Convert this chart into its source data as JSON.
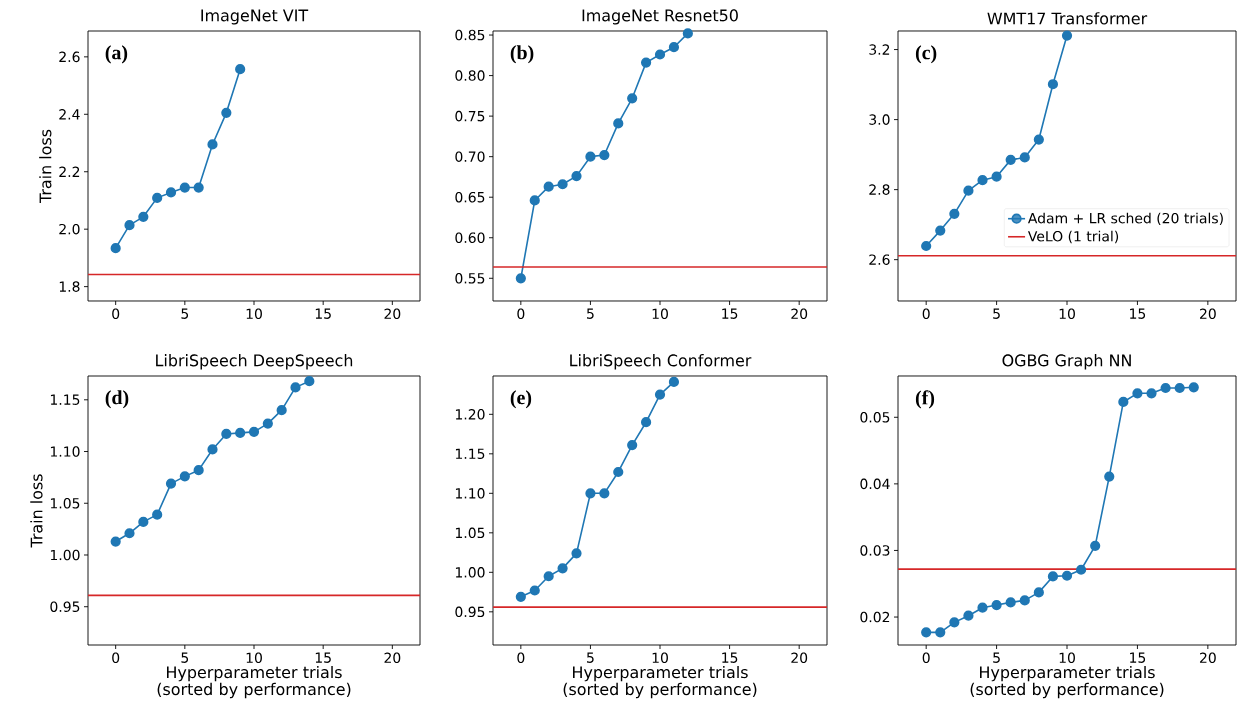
{
  "chart_data": [
    {
      "type": "line",
      "title": "ImageNet VIT",
      "ylabel": "Train loss",
      "annotations": [
        "(a)"
      ],
      "legend": false,
      "xlim": [
        -2,
        22
      ],
      "ylim": [
        1.75,
        2.69
      ],
      "xticks": [
        0,
        5,
        10,
        15,
        20
      ],
      "yticks": [
        {
          "value": 1.8,
          "label": "1.8"
        },
        {
          "value": 2.0,
          "label": "2.0"
        },
        {
          "value": 2.2,
          "label": "2.2"
        },
        {
          "value": 2.4,
          "label": "2.4"
        },
        {
          "value": 2.6,
          "label": "2.6"
        }
      ],
      "series": [
        {
          "color": "#1f77b4",
          "marker": "circle",
          "x": [
            0,
            1,
            2,
            3,
            4,
            5,
            6,
            7,
            8,
            9
          ],
          "values": [
            1.934,
            2.014,
            2.043,
            2.109,
            2.128,
            2.145,
            2.145,
            2.295,
            2.405,
            2.557
          ]
        },
        {
          "color": "#d62728",
          "marker": "none",
          "x": [
            -2,
            22
          ],
          "values": [
            1.842,
            1.842
          ]
        }
      ]
    },
    {
      "type": "line",
      "title": "ImageNet Resnet50",
      "annotations": [
        "(b)"
      ],
      "legend": false,
      "xlim": [
        -2,
        22
      ],
      "ylim": [
        0.522,
        0.855
      ],
      "xticks": [
        0,
        5,
        10,
        15,
        20
      ],
      "yticks": [
        {
          "value": 0.55,
          "label": "0.55"
        },
        {
          "value": 0.6,
          "label": "0.60"
        },
        {
          "value": 0.65,
          "label": "0.65"
        },
        {
          "value": 0.7,
          "label": "0.70"
        },
        {
          "value": 0.75,
          "label": "0.75"
        },
        {
          "value": 0.8,
          "label": "0.80"
        },
        {
          "value": 0.85,
          "label": "0.85"
        }
      ],
      "series": [
        {
          "color": "#1f77b4",
          "marker": "circle",
          "x": [
            0,
            1,
            2,
            3,
            4,
            5,
            6,
            7,
            8,
            9,
            10,
            11,
            12
          ],
          "values": [
            0.55,
            0.646,
            0.663,
            0.666,
            0.676,
            0.7,
            0.702,
            0.741,
            0.772,
            0.816,
            0.826,
            0.835,
            0.852
          ]
        },
        {
          "color": "#d62728",
          "marker": "none",
          "x": [
            -2,
            22
          ],
          "values": [
            0.564,
            0.564
          ]
        }
      ]
    },
    {
      "type": "line",
      "title": "WMT17 Transformer",
      "annotations": [
        "(c)"
      ],
      "legend": "bottom right",
      "xlim": [
        -2,
        22
      ],
      "ylim": [
        2.482,
        3.253
      ],
      "xticks": [
        0,
        5,
        10,
        15,
        20
      ],
      "yticks": [
        {
          "value": 2.6,
          "label": "2.6"
        },
        {
          "value": 2.8,
          "label": "2.8"
        },
        {
          "value": 3.0,
          "label": "3.0"
        },
        {
          "value": 3.2,
          "label": "3.2"
        }
      ],
      "series": [
        {
          "name": "Adam + LR sched (20 trials)",
          "color": "#1f77b4",
          "marker": "circle",
          "x": [
            0,
            1,
            2,
            3,
            4,
            5,
            6,
            7,
            8,
            9,
            10
          ],
          "values": [
            2.639,
            2.683,
            2.731,
            2.797,
            2.827,
            2.837,
            2.885,
            2.892,
            2.943,
            3.101,
            3.24
          ]
        },
        {
          "name": "VeLO (1 trial)",
          "color": "#d62728",
          "marker": "none",
          "x": [
            -2,
            22
          ],
          "values": [
            2.611,
            2.611
          ]
        }
      ]
    },
    {
      "type": "line",
      "title": "LibriSpeech DeepSpeech",
      "xlabel": "Hyperparameter trials (sorted by performance)",
      "ylabel": "Train loss",
      "annotations": [
        "(d)"
      ],
      "legend": false,
      "xlim": [
        -2,
        22
      ],
      "ylim": [
        0.913,
        1.173
      ],
      "xticks": [
        0,
        5,
        10,
        15,
        20
      ],
      "yticks": [
        {
          "value": 0.95,
          "label": "0.95"
        },
        {
          "value": 1.0,
          "label": "1.00"
        },
        {
          "value": 1.05,
          "label": "1.05"
        },
        {
          "value": 1.1,
          "label": "1.10"
        },
        {
          "value": 1.15,
          "label": "1.15"
        }
      ],
      "series": [
        {
          "color": "#1f77b4",
          "marker": "circle",
          "x": [
            0,
            1,
            2,
            3,
            4,
            5,
            6,
            7,
            8,
            9,
            10,
            11,
            12,
            13,
            14
          ],
          "values": [
            1.013,
            1.021,
            1.032,
            1.039,
            1.069,
            1.076,
            1.082,
            1.102,
            1.117,
            1.118,
            1.119,
            1.127,
            1.14,
            1.162,
            1.168
          ]
        },
        {
          "color": "#d62728",
          "marker": "none",
          "x": [
            -2,
            22
          ],
          "values": [
            0.961,
            0.961
          ]
        }
      ]
    },
    {
      "type": "line",
      "title": "LibriSpeech Conformer",
      "xlabel": "Hyperparameter trials (sorted by performance)",
      "annotations": [
        "(e)"
      ],
      "legend": false,
      "xlim": [
        -2,
        22
      ],
      "ylim": [
        0.908,
        1.2485
      ],
      "xticks": [
        0,
        5,
        10,
        15,
        20
      ],
      "yticks": [
        {
          "value": 0.95,
          "label": "0.95"
        },
        {
          "value": 1.0,
          "label": "1.00"
        },
        {
          "value": 1.05,
          "label": "1.05"
        },
        {
          "value": 1.1,
          "label": "1.10"
        },
        {
          "value": 1.15,
          "label": "1.15"
        },
        {
          "value": 1.2,
          "label": "1.20"
        }
      ],
      "series": [
        {
          "color": "#1f77b4",
          "marker": "circle",
          "x": [
            0,
            1,
            2,
            3,
            4,
            5,
            6,
            7,
            8,
            9,
            10,
            11
          ],
          "values": [
            0.969,
            0.977,
            0.995,
            1.005,
            1.024,
            1.1,
            1.1,
            1.127,
            1.161,
            1.19,
            1.225,
            1.241
          ]
        },
        {
          "color": "#d62728",
          "marker": "none",
          "x": [
            -2,
            22
          ],
          "values": [
            0.956,
            0.956
          ]
        }
      ]
    },
    {
      "type": "line",
      "title": "OGBG Graph NN",
      "xlabel": "Hyperparameter trials (sorted by performance)",
      "annotations": [
        "(f)"
      ],
      "legend": false,
      "xlim": [
        -2,
        22
      ],
      "ylim": [
        0.0158,
        0.0562
      ],
      "xticks": [
        0,
        5,
        10,
        15,
        20
      ],
      "yticks": [
        {
          "value": 0.02,
          "label": "0.02"
        },
        {
          "value": 0.03,
          "label": "0.03"
        },
        {
          "value": 0.04,
          "label": "0.04"
        },
        {
          "value": 0.05,
          "label": "0.05"
        }
      ],
      "series": [
        {
          "color": "#1f77b4",
          "marker": "circle",
          "x": [
            0,
            1,
            2,
            3,
            4,
            5,
            6,
            7,
            8,
            9,
            10,
            11,
            12,
            13,
            14,
            15,
            16,
            17,
            18,
            19
          ],
          "values": [
            0.0177,
            0.0177,
            0.0192,
            0.0202,
            0.0214,
            0.0218,
            0.0222,
            0.0225,
            0.0237,
            0.0261,
            0.0262,
            0.0271,
            0.0307,
            0.0411,
            0.0523,
            0.0536,
            0.0536,
            0.0544,
            0.0544,
            0.0545
          ]
        },
        {
          "color": "#d62728",
          "marker": "none",
          "x": [
            -2,
            22
          ],
          "values": [
            0.0272,
            0.0272
          ]
        }
      ]
    }
  ]
}
